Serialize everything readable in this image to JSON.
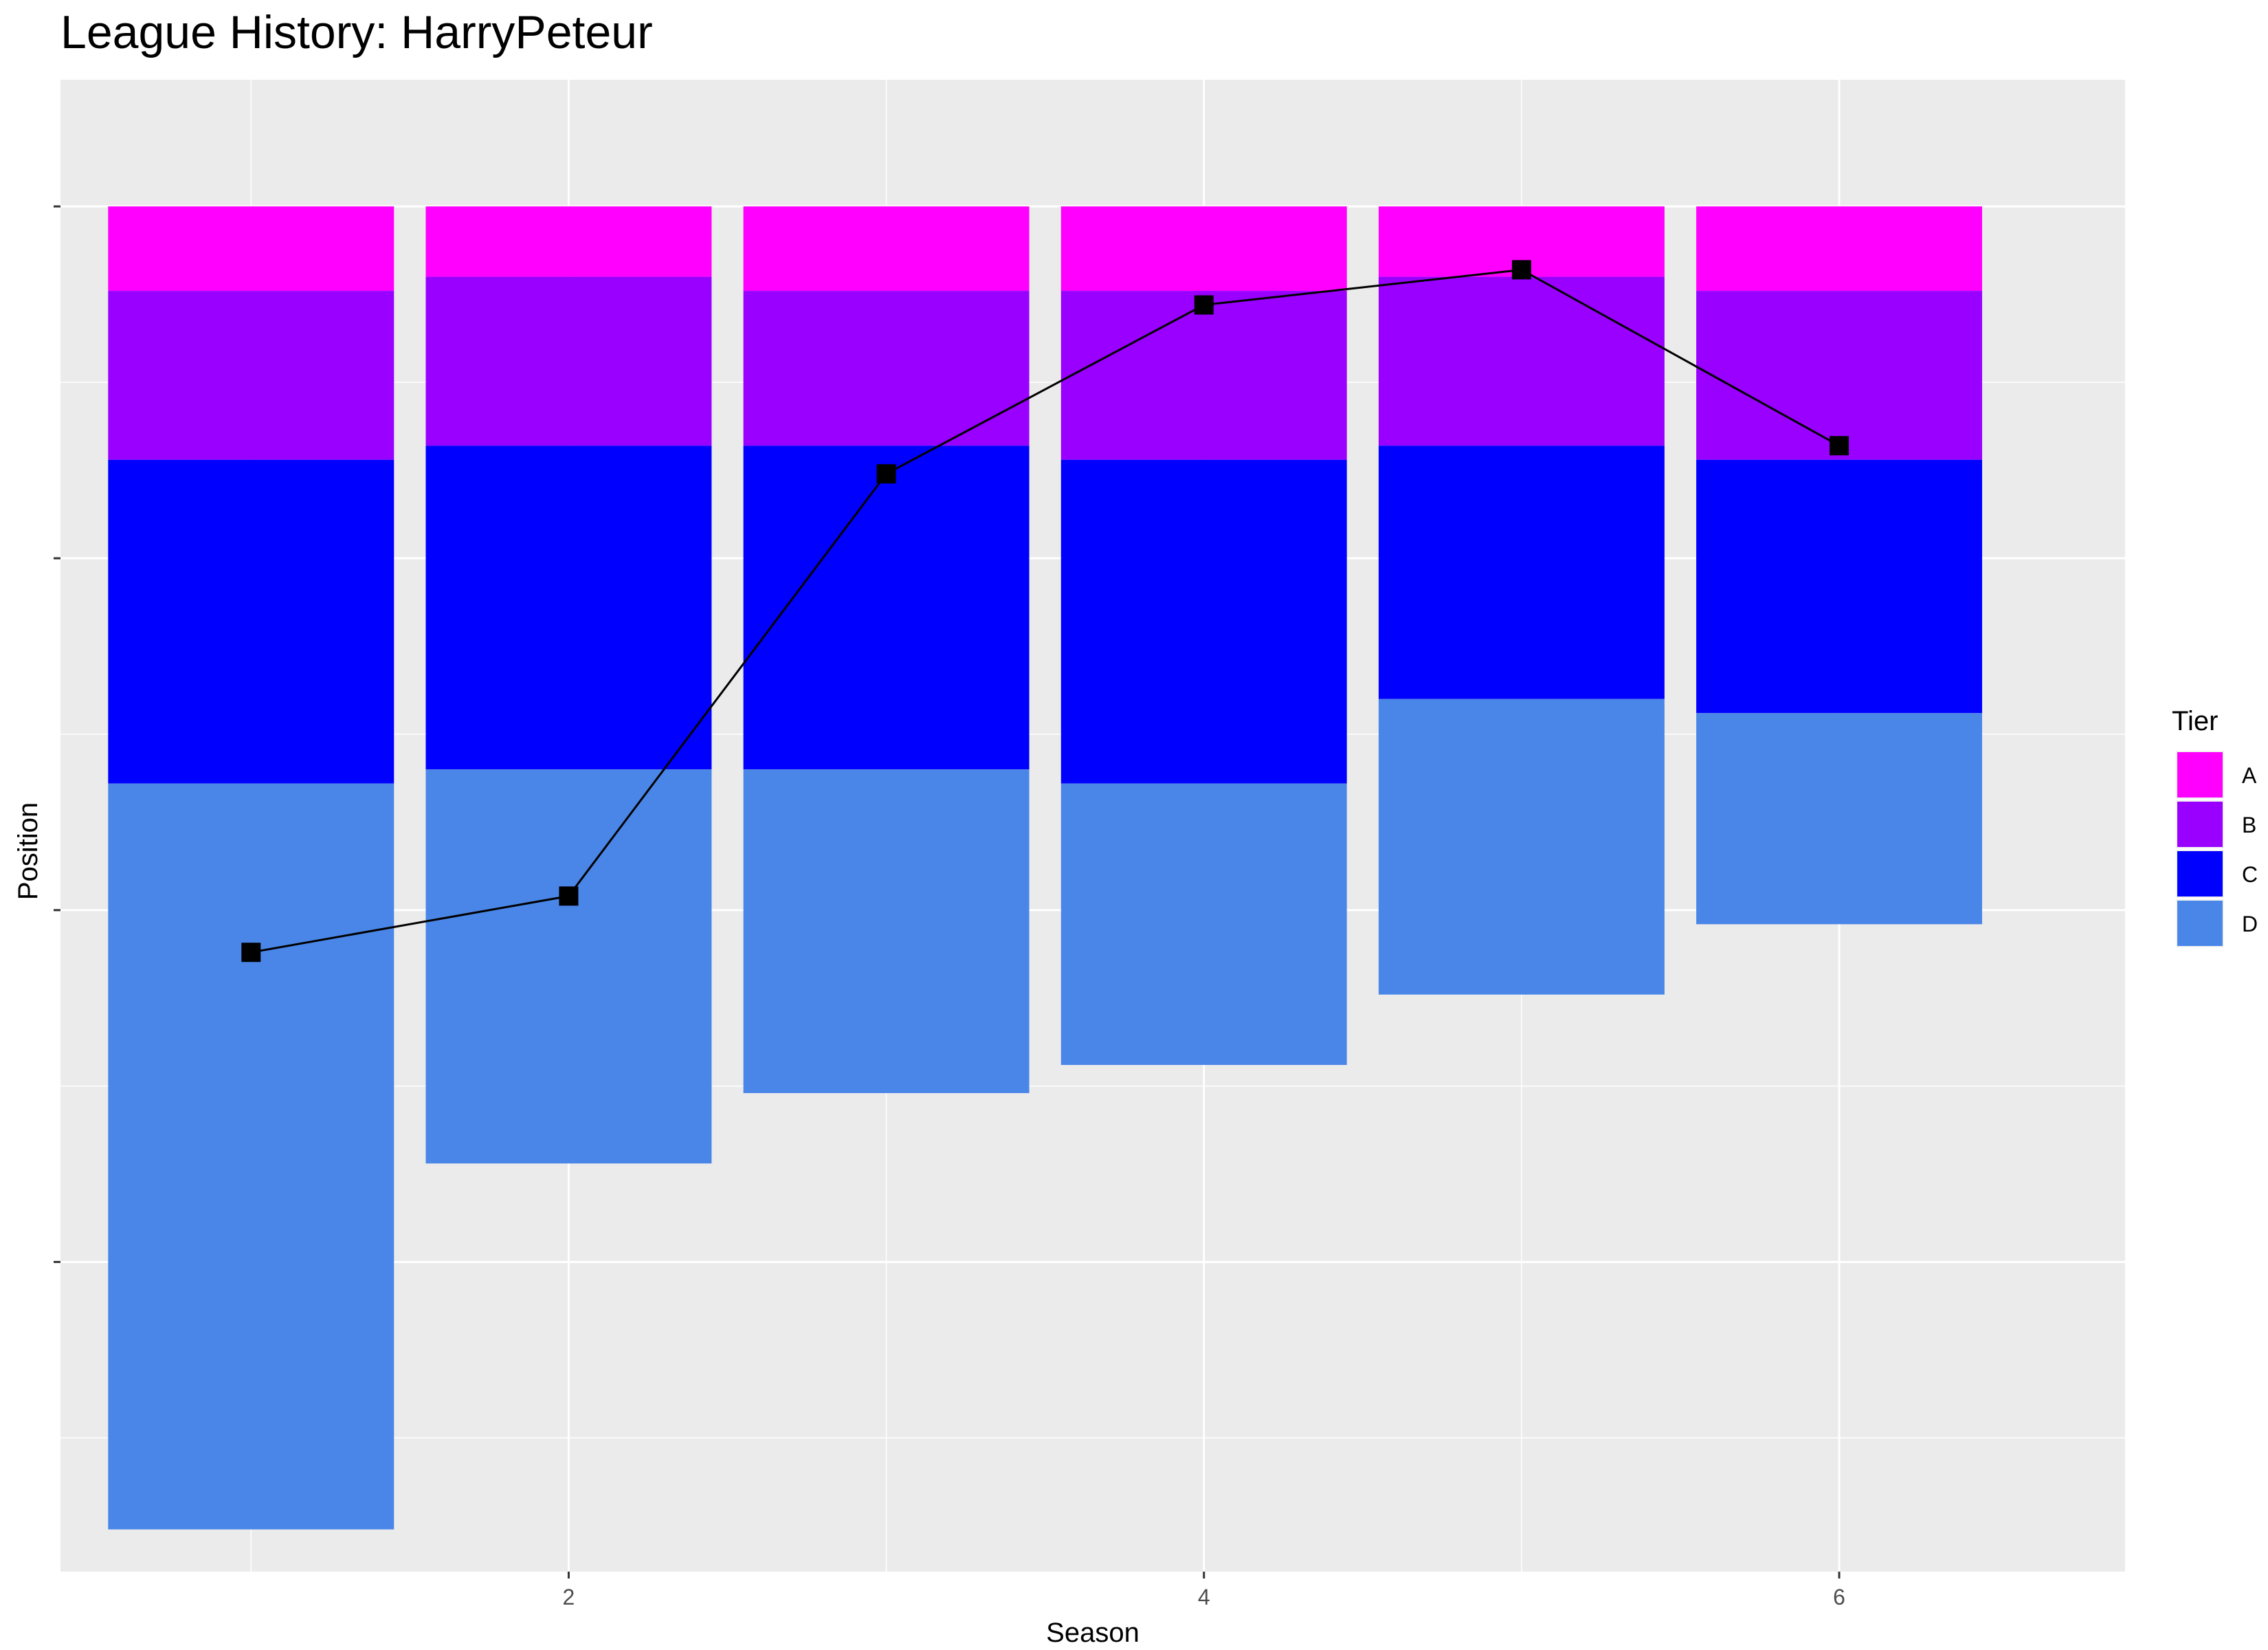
{
  "title": "League History: HarryPeteur",
  "chart_data": {
    "type": "bar",
    "title": "League History: HarryPeteur",
    "xlabel": "Season",
    "ylabel": "Position",
    "x_ticks": [
      2,
      4,
      6
    ],
    "y_axis_reversed": true,
    "grid": true,
    "legend": {
      "title": "Tier",
      "placement": "right",
      "entries": [
        {
          "name": "A",
          "color": "#FF00FF"
        },
        {
          "name": "B",
          "color": "#9900FF"
        },
        {
          "name": "C",
          "color": "#0000FF"
        },
        {
          "name": "D",
          "color": "#4A86E8"
        }
      ]
    },
    "stacked_tier_bars": [
      {
        "season": 1,
        "A": 12,
        "B": 24,
        "C": 46,
        "D": 106
      },
      {
        "season": 2,
        "A": 10,
        "B": 24,
        "C": 46,
        "D": 56
      },
      {
        "season": 3,
        "A": 12,
        "B": 22,
        "C": 46,
        "D": 46
      },
      {
        "season": 4,
        "A": 12,
        "B": 24,
        "C": 46,
        "D": 40
      },
      {
        "season": 5,
        "A": 10,
        "B": 24,
        "C": 36,
        "D": 42
      },
      {
        "season": 6,
        "A": 12,
        "B": 24,
        "C": 36,
        "D": 30
      }
    ],
    "series": [
      {
        "season": [
          1,
          2,
          3,
          4,
          5,
          6
        ],
        "values": [
          106,
          98,
          38,
          14,
          9,
          34
        ]
      }
    ]
  }
}
